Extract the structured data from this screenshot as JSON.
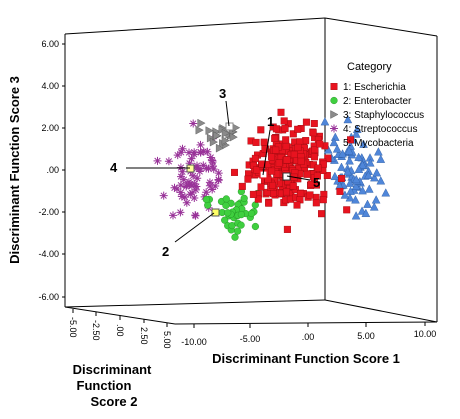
{
  "chart_data": {
    "type": "scatter",
    "projection": "3d",
    "x_axis": {
      "label": "Discriminant Function Score 1",
      "ticks": [
        "-10.00",
        "-5.00",
        ".00",
        "5.00",
        "10.00"
      ],
      "range": [
        -12,
        11
      ]
    },
    "y_axis": {
      "label_lines": [
        "Discriminant",
        "Function",
        "Score 2"
      ],
      "ticks": [
        "-5.00",
        "-2.50",
        ".00",
        "2.50",
        "5.00"
      ],
      "range": [
        -6,
        6
      ]
    },
    "z_axis": {
      "label": "Discriminant Function Score 3",
      "ticks": [
        "6.00",
        "4.00",
        "2.00",
        ".00",
        "-2.00",
        "-4.00",
        "-6.00"
      ],
      "range": [
        -6,
        6
      ]
    },
    "legend": {
      "title": "Category",
      "position": "top-right",
      "entries": [
        {
          "label": "1: Escherichia",
          "color": "#e8131f",
          "marker": "square"
        },
        {
          "label": "2: Enterobacter",
          "color": "#3fcf3f",
          "marker": "circle"
        },
        {
          "label": "3: Staphylococcus",
          "color": "#8a8a8a",
          "marker": "triangle-right"
        },
        {
          "label": "4: Streptococcus",
          "color": "#993399",
          "marker": "star"
        },
        {
          "label": "5: Mycobacteria",
          "color": "#4f86d9",
          "marker": "triangle-up"
        }
      ]
    },
    "series": [
      {
        "name": "1: Escherichia",
        "approx_center": {
          "score1": -1.5,
          "score2": 0.0,
          "score3": 0.2
        },
        "spread": [
          3.0,
          2.5,
          1.7
        ]
      },
      {
        "name": "2: Enterobacter",
        "approx_center": {
          "score1": -6.0,
          "score2": -1.0,
          "score3": -2.2
        },
        "spread": [
          2.0,
          1.5,
          1.0
        ]
      },
      {
        "name": "3: Staphylococcus",
        "approx_center": {
          "score1": -7.0,
          "score2": 1.5,
          "score3": 1.8
        },
        "spread": [
          1.5,
          1.0,
          0.6
        ]
      },
      {
        "name": "4: Streptococcus",
        "approx_center": {
          "score1": -9.5,
          "score2": 1.0,
          "score3": 0.0
        },
        "spread": [
          2.0,
          2.0,
          1.7
        ]
      },
      {
        "name": "5: Mycobacteria",
        "approx_center": {
          "score1": 4.0,
          "score2": 0.0,
          "score3": 0.0
        },
        "spread": [
          2.0,
          2.0,
          1.6
        ]
      }
    ],
    "centroid_labels": [
      "1",
      "2",
      "3",
      "4",
      "5"
    ],
    "grid": false
  }
}
